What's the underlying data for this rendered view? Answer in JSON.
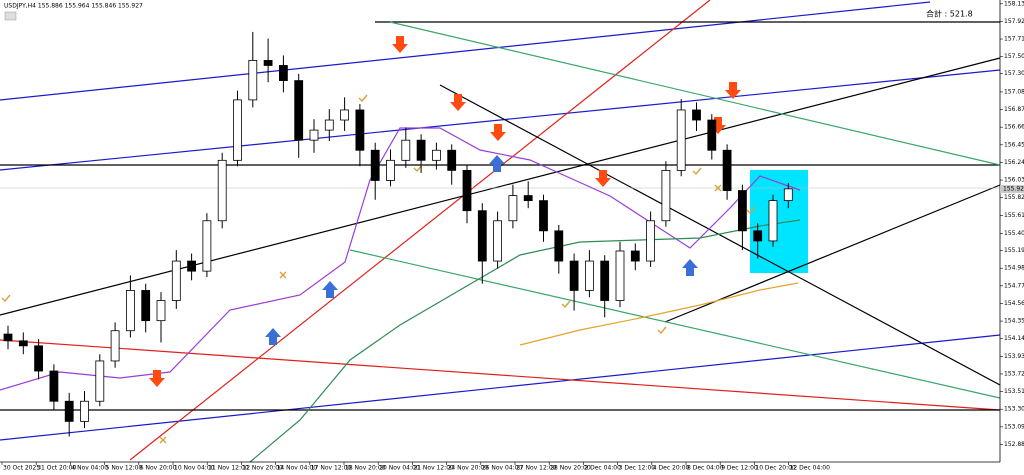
{
  "chart_data": {
    "type": "candlestick",
    "title": "USDJPY,H4 155.886 155.964 155.846 155.927",
    "annotation": "合計 : 521.8",
    "current_price": 155.927,
    "up_color": "#ffffff",
    "down_color": "#000000",
    "ylim": [
      152.7,
      158.18
    ],
    "yticks": [
      158.135,
      157.925,
      157.715,
      157.505,
      157.305,
      157.085,
      156.875,
      156.665,
      156.455,
      156.245,
      156.035,
      155.825,
      155.615,
      {
        "value": 155.4,
        "label": "155.400"
      },
      155.195,
      154.985,
      154.775,
      154.565,
      154.355,
      154.145,
      153.935,
      153.725,
      153.515,
      153.305,
      153.095,
      152.885
    ],
    "x_labels": [
      "30 Oct 2025",
      "31 Oct 20:00",
      "4 Nov 04:00",
      "5 Nov 12:00",
      "6 Nov 20:00",
      "10 Nov 04:00",
      "11 Nov 12:00",
      "12 Nov 20:00",
      "14 Nov 04:00",
      "17 Nov 12:00",
      "18 Nov 20:00",
      "20 Nov 04:00",
      "21 Nov 12:00",
      "24 Nov 20:00",
      "26 Nov 04:00",
      "27 Nov 12:00",
      "28 Nov 20:00",
      "2 Dec 04:00",
      "3 Dec 12:00",
      "4 Dec 20:00",
      "8 Dec 04:00",
      "9 Dec 12:00",
      "10 Dec 20:00",
      "12 Dec 04:00"
    ],
    "ohlc": [
      [
        154.2,
        154.3,
        154.02,
        154.12
      ],
      [
        154.12,
        154.22,
        153.96,
        154.06
      ],
      [
        154.06,
        154.14,
        153.66,
        153.76
      ],
      [
        153.76,
        153.84,
        153.3,
        153.4
      ],
      [
        153.4,
        153.5,
        152.98,
        153.16
      ],
      [
        153.16,
        153.52,
        153.08,
        153.4
      ],
      [
        153.4,
        153.96,
        153.34,
        153.88
      ],
      [
        153.88,
        154.34,
        153.8,
        154.24
      ],
      [
        154.24,
        154.9,
        154.16,
        154.72
      ],
      [
        154.72,
        154.8,
        154.22,
        154.36
      ],
      [
        154.36,
        154.7,
        154.1,
        154.6
      ],
      [
        154.6,
        155.2,
        154.5,
        155.07
      ],
      [
        155.07,
        155.16,
        154.84,
        154.95
      ],
      [
        154.95,
        155.64,
        154.88,
        155.55
      ],
      [
        155.55,
        156.36,
        155.46,
        156.27
      ],
      [
        156.27,
        157.1,
        156.2,
        156.99
      ],
      [
        156.99,
        157.8,
        156.9,
        157.46
      ],
      [
        157.46,
        157.72,
        157.2,
        157.4
      ],
      [
        157.4,
        157.52,
        157.08,
        157.22
      ],
      [
        157.22,
        157.3,
        156.3,
        156.51
      ],
      [
        156.51,
        156.76,
        156.36,
        156.63
      ],
      [
        156.63,
        156.88,
        156.5,
        156.75
      ],
      [
        156.75,
        157.02,
        156.62,
        156.87
      ],
      [
        156.87,
        156.94,
        156.2,
        156.39
      ],
      [
        156.39,
        156.48,
        155.8,
        156.03
      ],
      [
        156.03,
        156.4,
        155.96,
        156.27
      ],
      [
        156.27,
        156.66,
        156.18,
        156.51
      ],
      [
        156.51,
        156.58,
        156.12,
        156.27
      ],
      [
        156.27,
        156.48,
        156.16,
        156.39
      ],
      [
        156.39,
        156.46,
        155.98,
        156.15
      ],
      [
        156.15,
        156.22,
        155.52,
        155.67
      ],
      [
        155.67,
        155.76,
        154.8,
        155.07
      ],
      [
        155.07,
        155.66,
        154.98,
        155.55
      ],
      [
        155.55,
        155.98,
        155.46,
        155.85
      ],
      [
        155.85,
        156.02,
        155.7,
        155.79
      ],
      [
        155.79,
        155.86,
        155.3,
        155.43
      ],
      [
        155.43,
        155.5,
        154.92,
        155.07
      ],
      [
        155.07,
        155.16,
        154.48,
        154.72
      ],
      [
        154.72,
        155.2,
        154.64,
        155.07
      ],
      [
        155.07,
        155.14,
        154.4,
        154.6
      ],
      [
        154.6,
        155.3,
        154.52,
        155.19
      ],
      [
        155.19,
        155.28,
        154.96,
        155.07
      ],
      [
        155.07,
        155.66,
        155.0,
        155.55
      ],
      [
        155.55,
        156.26,
        155.48,
        156.15
      ],
      [
        156.15,
        157.0,
        156.08,
        156.87
      ],
      [
        156.87,
        156.96,
        156.62,
        156.75
      ],
      [
        156.75,
        156.82,
        156.28,
        156.39
      ],
      [
        156.39,
        156.46,
        155.8,
        155.91
      ],
      [
        155.91,
        155.98,
        155.2,
        155.43
      ],
      [
        155.43,
        155.52,
        155.1,
        155.31
      ],
      [
        155.31,
        155.86,
        155.24,
        155.79
      ],
      [
        155.79,
        156.0,
        155.7,
        155.93
      ]
    ]
  }
}
